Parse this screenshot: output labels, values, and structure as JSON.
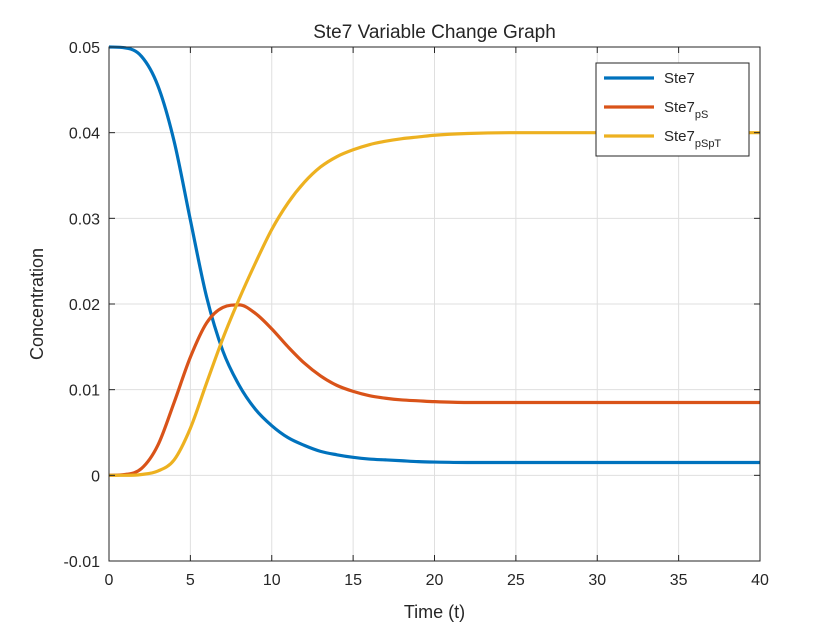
{
  "chart_data": {
    "type": "line",
    "title": "Ste7 Variable Change Graph",
    "xlabel": "Time (t)",
    "ylabel": "Concentration",
    "xlim": [
      0,
      40
    ],
    "ylim": [
      -0.01,
      0.05
    ],
    "xticks": [
      0,
      5,
      10,
      15,
      20,
      25,
      30,
      35,
      40
    ],
    "yticks": [
      -0.01,
      0,
      0.01,
      0.02,
      0.03,
      0.04,
      0.05
    ],
    "grid": true,
    "legend_position": "top-right",
    "series": [
      {
        "name": "Ste7",
        "name_base": "Ste7",
        "name_sub": "",
        "color": "#0072BD",
        "x": [
          0,
          1,
          2,
          3,
          4,
          5,
          6,
          7,
          8,
          9,
          10,
          11,
          12,
          13,
          14,
          15,
          16,
          17,
          18,
          19,
          20,
          22,
          25,
          30,
          35,
          40
        ],
        "y": [
          0.05,
          0.0499,
          0.0489,
          0.0455,
          0.039,
          0.0298,
          0.0208,
          0.0145,
          0.0105,
          0.0077,
          0.0058,
          0.0044,
          0.0035,
          0.0028,
          0.0024,
          0.0021,
          0.0019,
          0.0018,
          0.0017,
          0.0016,
          0.00155,
          0.0015,
          0.0015,
          0.0015,
          0.0015,
          0.0015
        ]
      },
      {
        "name": "Ste7pS",
        "name_base": "Ste7",
        "name_sub": "pS",
        "color": "#D95319",
        "x": [
          0,
          1,
          2,
          3,
          4,
          5,
          6,
          7,
          8,
          9,
          10,
          11,
          12,
          13,
          14,
          15,
          16,
          17,
          18,
          19,
          20,
          22,
          25,
          30,
          35,
          40
        ],
        "y": [
          0,
          0.0001,
          0.0008,
          0.0035,
          0.0085,
          0.0138,
          0.0178,
          0.0196,
          0.0199,
          0.0189,
          0.0171,
          0.015,
          0.0131,
          0.0116,
          0.0105,
          0.0098,
          0.0093,
          0.009,
          0.0088,
          0.0087,
          0.0086,
          0.0085,
          0.0085,
          0.0085,
          0.0085,
          0.0085
        ]
      },
      {
        "name": "Ste7pSpT",
        "name_base": "Ste7",
        "name_sub": "pSpT",
        "color": "#EDB120",
        "x": [
          0,
          1,
          2,
          3,
          4,
          5,
          6,
          7,
          8,
          9,
          10,
          11,
          12,
          13,
          14,
          15,
          16,
          17,
          18,
          19,
          20,
          22,
          25,
          30,
          35,
          40
        ],
        "y": [
          0,
          0,
          0.0001,
          0.0005,
          0.0018,
          0.0055,
          0.0108,
          0.016,
          0.0206,
          0.0248,
          0.0287,
          0.0318,
          0.0342,
          0.036,
          0.0372,
          0.038,
          0.0386,
          0.039,
          0.0393,
          0.0395,
          0.0397,
          0.0399,
          0.04,
          0.04,
          0.04,
          0.04
        ]
      }
    ]
  }
}
